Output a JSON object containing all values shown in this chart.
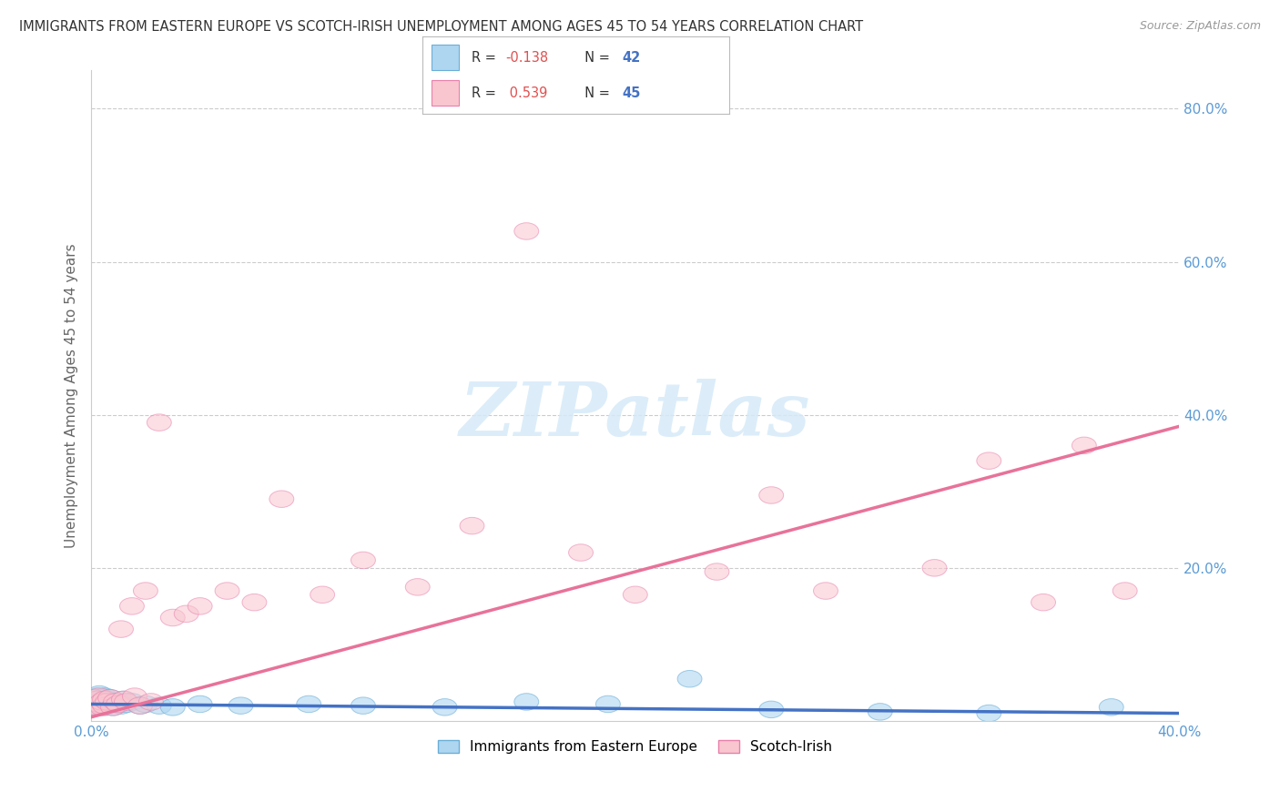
{
  "title": "IMMIGRANTS FROM EASTERN EUROPE VS SCOTCH-IRISH UNEMPLOYMENT AMONG AGES 45 TO 54 YEARS CORRELATION CHART",
  "source": "Source: ZipAtlas.com",
  "ylabel": "Unemployment Among Ages 45 to 54 years",
  "xlim": [
    0.0,
    0.4
  ],
  "ylim": [
    0.0,
    0.85
  ],
  "series1_label": "Immigrants from Eastern Europe",
  "series1_face": "#AED6F1",
  "series1_edge": "#6BAED6",
  "series1_line": "#4472C4",
  "series1_R": "-0.138",
  "series1_N": "42",
  "series2_label": "Scotch-Irish",
  "series2_face": "#F9C6D0",
  "series2_edge": "#E87FAA",
  "series2_line": "#E8729A",
  "series2_R": "0.539",
  "series2_N": "45",
  "background_color": "#FFFFFF",
  "grid_color": "#CCCCCC",
  "tick_color": "#5B9BD5",
  "watermark_color": "#D6EAF8",
  "series1_x": [
    0.001,
    0.001,
    0.001,
    0.002,
    0.002,
    0.002,
    0.003,
    0.003,
    0.003,
    0.004,
    0.004,
    0.005,
    0.005,
    0.005,
    0.006,
    0.006,
    0.007,
    0.007,
    0.008,
    0.008,
    0.009,
    0.01,
    0.011,
    0.012,
    0.013,
    0.015,
    0.018,
    0.02,
    0.025,
    0.03,
    0.04,
    0.055,
    0.08,
    0.1,
    0.13,
    0.16,
    0.19,
    0.22,
    0.25,
    0.29,
    0.33,
    0.375
  ],
  "series1_y": [
    0.02,
    0.025,
    0.03,
    0.018,
    0.025,
    0.032,
    0.02,
    0.028,
    0.035,
    0.022,
    0.03,
    0.018,
    0.025,
    0.032,
    0.02,
    0.028,
    0.022,
    0.03,
    0.018,
    0.025,
    0.022,
    0.025,
    0.02,
    0.028,
    0.022,
    0.025,
    0.02,
    0.022,
    0.02,
    0.018,
    0.022,
    0.02,
    0.022,
    0.02,
    0.018,
    0.025,
    0.022,
    0.055,
    0.015,
    0.012,
    0.01,
    0.018
  ],
  "series2_x": [
    0.001,
    0.001,
    0.002,
    0.002,
    0.003,
    0.003,
    0.004,
    0.004,
    0.005,
    0.005,
    0.006,
    0.007,
    0.008,
    0.009,
    0.01,
    0.011,
    0.012,
    0.013,
    0.015,
    0.016,
    0.018,
    0.02,
    0.022,
    0.025,
    0.03,
    0.035,
    0.04,
    0.05,
    0.06,
    0.07,
    0.085,
    0.1,
    0.12,
    0.14,
    0.16,
    0.18,
    0.2,
    0.23,
    0.25,
    0.27,
    0.31,
    0.33,
    0.35,
    0.365,
    0.38
  ],
  "series2_y": [
    0.02,
    0.03,
    0.018,
    0.028,
    0.022,
    0.032,
    0.018,
    0.025,
    0.02,
    0.028,
    0.025,
    0.03,
    0.018,
    0.025,
    0.022,
    0.12,
    0.028,
    0.025,
    0.15,
    0.032,
    0.02,
    0.17,
    0.025,
    0.39,
    0.135,
    0.14,
    0.15,
    0.17,
    0.155,
    0.29,
    0.165,
    0.21,
    0.175,
    0.255,
    0.64,
    0.22,
    0.165,
    0.195,
    0.295,
    0.17,
    0.2,
    0.34,
    0.155,
    0.36,
    0.17
  ]
}
